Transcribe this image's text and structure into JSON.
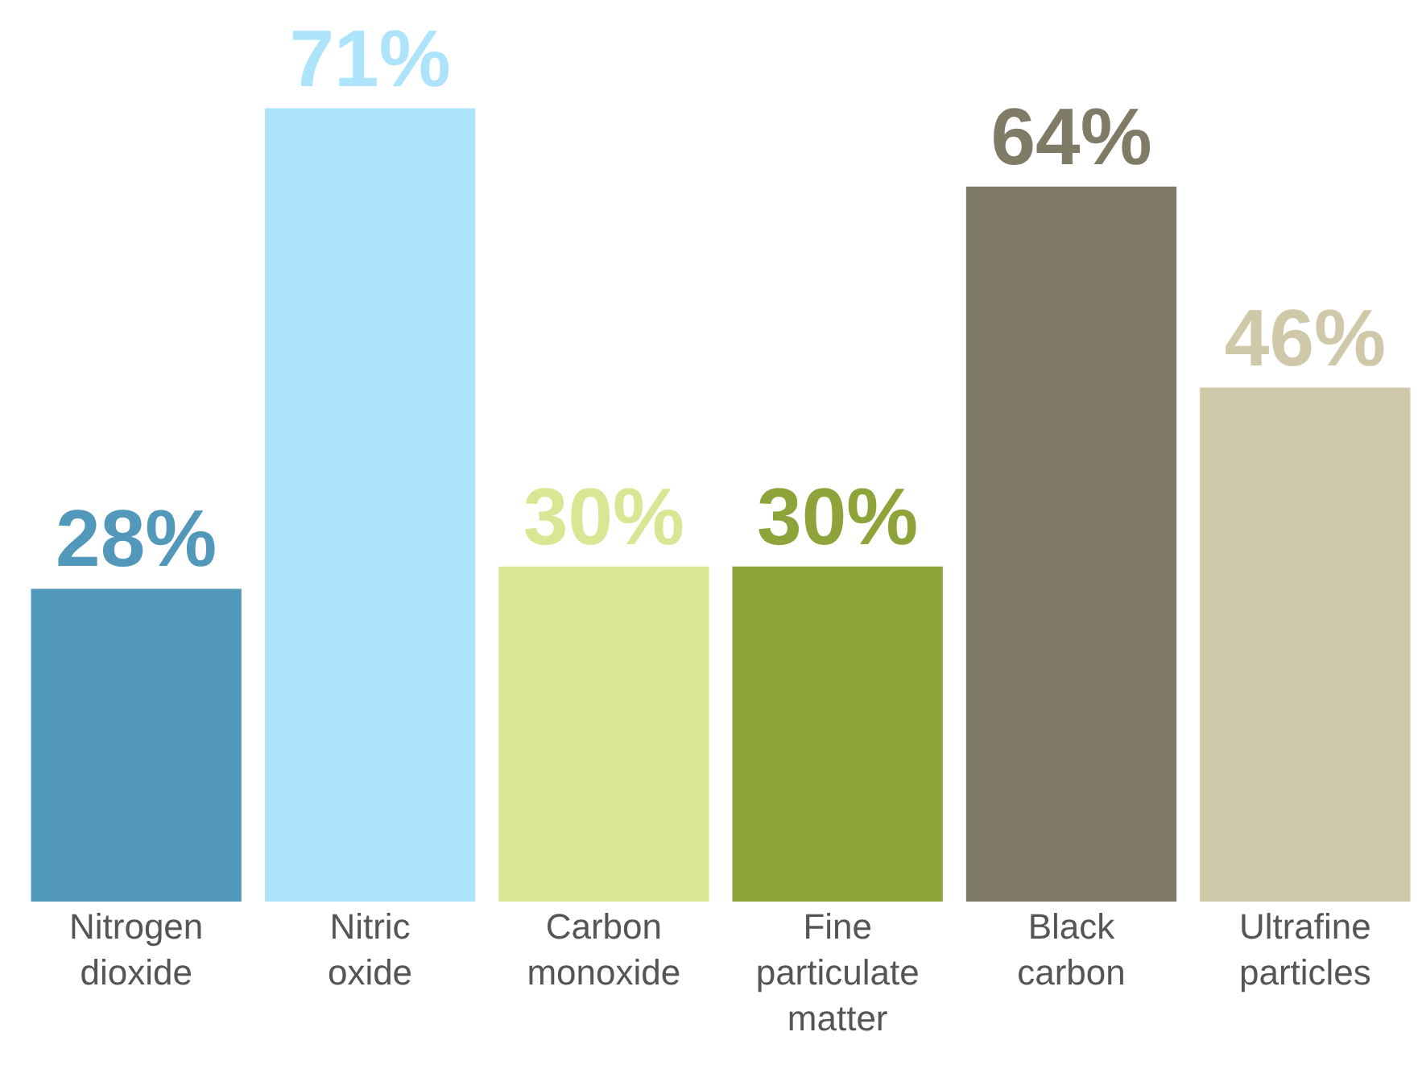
{
  "chart_data": {
    "type": "bar",
    "categories": [
      "Nitrogen dioxide",
      "Nitric oxide",
      "Carbon monoxide",
      "Fine particulate matter",
      "Black carbon",
      "Ultrafine particles"
    ],
    "values": [
      28,
      71,
      30,
      30,
      64,
      46
    ],
    "colors": [
      "#5298ba",
      "#aee4fb",
      "#d8e793",
      "#8fa33b",
      "#7f7b67",
      "#cfc9aa"
    ],
    "value_labels": [
      "28%",
      "71%",
      "30%",
      "30%",
      "64%",
      "46%"
    ],
    "ylim": [
      0,
      80.7
    ]
  }
}
